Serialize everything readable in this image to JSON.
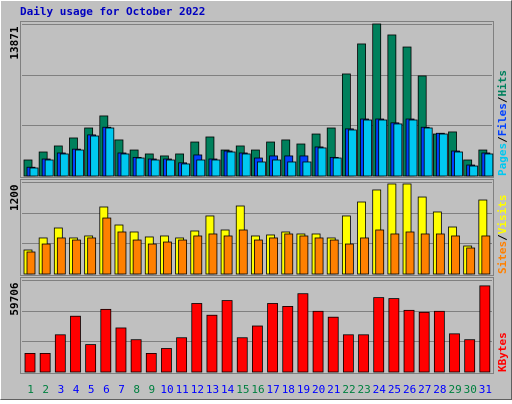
{
  "chart_data": {
    "type": "bar",
    "title": "Daily usage for October 2022",
    "categories": [
      "1",
      "2",
      "3",
      "4",
      "5",
      "6",
      "7",
      "8",
      "9",
      "10",
      "11",
      "12",
      "13",
      "14",
      "15",
      "16",
      "17",
      "18",
      "19",
      "20",
      "21",
      "22",
      "23",
      "24",
      "25",
      "26",
      "27",
      "28",
      "29",
      "30",
      "31"
    ],
    "category_colors": [
      "#008040",
      "#008040",
      "#0000ff",
      "#0000ff",
      "#0000ff",
      "#0000ff",
      "#0000ff",
      "#008040",
      "#008040",
      "#0000ff",
      "#0000ff",
      "#0000ff",
      "#0000ff",
      "#0000ff",
      "#008040",
      "#008040",
      "#0000ff",
      "#0000ff",
      "#0000ff",
      "#0000ff",
      "#0000ff",
      "#008040",
      "#008040",
      "#0000ff",
      "#0000ff",
      "#0000ff",
      "#0000ff",
      "#0000ff",
      "#008040",
      "#008040",
      "#0000ff"
    ],
    "legend_separator": "/",
    "grid_divisions": 3,
    "panels": [
      {
        "ylim": [
          0,
          13871
        ],
        "yticks": [
          13871
        ],
        "series": [
          {
            "name": "Hits",
            "color": "#00805c",
            "values": [
              1460,
              2190,
              2740,
              3470,
              4380,
              5480,
              3290,
              2370,
              2010,
              1830,
              2010,
              3100,
              3560,
              2370,
              2740,
              2370,
              3100,
              3290,
              2920,
              3830,
              4380,
              9310,
              12050,
              13871,
              12870,
              11770,
              9130,
              3830,
              4020,
              1460,
              2370
            ]
          },
          {
            "name": "Files",
            "color": "#0040ff",
            "values": [
              800,
              1550,
              2100,
              2450,
              3750,
              4450,
              2100,
              1700,
              1550,
              1550,
              1200,
              1920,
              1550,
              2280,
              2100,
              1640,
              1830,
              1830,
              1830,
              2650,
              1700,
              4300,
              5200,
              5200,
              4850,
              5200,
              4450,
              3900,
              2280,
              1000,
              2100
            ]
          },
          {
            "name": "Pages",
            "color": "#00c8f0",
            "values": [
              730,
              1460,
              2010,
              2370,
              3650,
              4380,
              2010,
              1640,
              1460,
              1460,
              1100,
              1460,
              1460,
              2190,
              2010,
              1280,
              1460,
              1280,
              1280,
              2560,
              1640,
              4200,
              5110,
              5110,
              4750,
              5110,
              4380,
              3830,
              2190,
              910,
              2010
            ]
          }
        ]
      },
      {
        "ylim": [
          0,
          1200
        ],
        "yticks": [
          1200
        ],
        "series": [
          {
            "name": "Visits",
            "color": "#ffff00",
            "values": [
              313,
              470,
              600,
              470,
              496,
              874,
              639,
              548,
              483,
              496,
              470,
              561,
              757,
              574,
              887,
              496,
              509,
              548,
              522,
              522,
              470,
              757,
              939,
              1096,
              1174,
              1174,
              1004,
              809,
              613,
              365,
              965
            ]
          },
          {
            "name": "Sites",
            "color": "#ff8000",
            "values": [
              287,
              391,
              470,
              443,
              470,
              730,
              548,
              443,
              391,
              417,
              443,
              496,
              522,
              496,
              574,
              443,
              470,
              522,
              496,
              470,
              443,
              391,
              470,
              574,
              522,
              548,
              522,
              522,
              496,
              339,
              496
            ]
          }
        ]
      },
      {
        "ylim": [
          0,
          59706
        ],
        "yticks": [
          59706
        ],
        "series": [
          {
            "name": "KBytes",
            "color": "#ff0000",
            "values": [
              12070,
              12070,
              24140,
              36200,
              17780,
              40650,
              28580,
              20960,
              12070,
              15240,
              22230,
              44460,
              36840,
              46370,
              22230,
              29850,
              44460,
              42560,
              50810,
              39380,
              35570,
              24140,
              24140,
              48270,
              47640,
              40020,
              38750,
              39380,
              24770,
              20960,
              55890
            ]
          }
        ]
      }
    ]
  }
}
